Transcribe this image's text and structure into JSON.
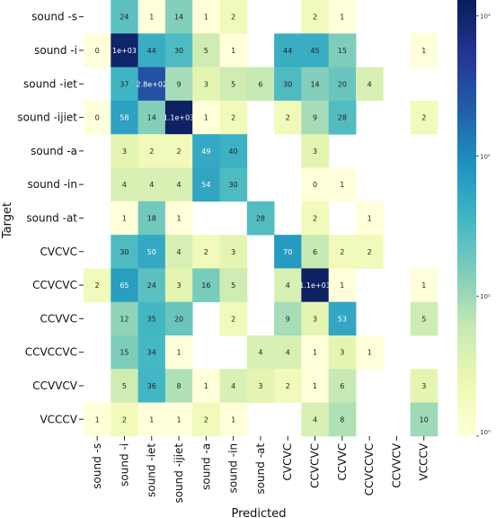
{
  "chart_data": {
    "type": "heatmap",
    "xlabel": "Predicted",
    "ylabel": "Target",
    "scale": "log",
    "colormap": "YlGnBu",
    "rows": [
      "sound -s",
      "sound -i",
      "sound -iet",
      "sound -ijiet",
      "sound -a",
      "sound -in",
      "sound -at",
      "CVCVC",
      "CCVCVC",
      "CCVVC",
      "CCVCCVC",
      "CCVVCV",
      "VCCCV"
    ],
    "columns": [
      "sound -s",
      "sound -i",
      "sound -iet",
      "sound -ijiet",
      "sound -a",
      "sound -in",
      "sound -at",
      "CVCVC",
      "CCVCVC",
      "CCVVC",
      "CCVCCVC",
      "CCVVCV",
      "VCCCV"
    ],
    "cells": [
      [
        "",
        "24",
        "1",
        "14",
        "1",
        "2",
        "",
        "",
        "2",
        "1",
        "",
        "",
        ""
      ],
      [
        "0",
        "1e+03",
        "44",
        "30",
        "5",
        "1",
        "",
        "44",
        "45",
        "15",
        "",
        "",
        "1"
      ],
      [
        "",
        "37",
        "2.8e+02",
        "9",
        "3",
        "5",
        "6",
        "30",
        "14",
        "20",
        "4",
        "",
        ""
      ],
      [
        "0",
        "58",
        "14",
        "1.1e+03",
        "1",
        "2",
        "",
        "2",
        "9",
        "28",
        "",
        "",
        "2"
      ],
      [
        "",
        "3",
        "2",
        "2",
        "49",
        "40",
        "",
        "",
        "3",
        "",
        "",
        "",
        ""
      ],
      [
        "",
        "4",
        "4",
        "4",
        "54",
        "30",
        "",
        "",
        "0",
        "1",
        "",
        "",
        ""
      ],
      [
        "",
        "1",
        "18",
        "1",
        "",
        "",
        "28",
        "",
        "2",
        "",
        "1",
        "",
        ""
      ],
      [
        "",
        "30",
        "50",
        "4",
        "2",
        "3",
        "",
        "70",
        "6",
        "2",
        "2",
        "",
        ""
      ],
      [
        "2",
        "65",
        "24",
        "3",
        "16",
        "5",
        "",
        "4",
        "1.1e+03",
        "1",
        "",
        "",
        "1"
      ],
      [
        "",
        "12",
        "35",
        "20",
        "",
        "2",
        "",
        "9",
        "3",
        "53",
        "",
        "",
        "5"
      ],
      [
        "",
        "15",
        "34",
        "1",
        "",
        "",
        "4",
        "4",
        "1",
        "3",
        "1",
        "",
        ""
      ],
      [
        "",
        "5",
        "36",
        "8",
        "1",
        "4",
        "3",
        "2",
        "1",
        "6",
        "",
        "",
        "3"
      ],
      [
        "1",
        "2",
        "1",
        "1",
        "2",
        "1",
        "",
        "",
        "4",
        "8",
        "",
        "",
        "10"
      ]
    ],
    "values": [
      [
        null,
        24,
        1,
        14,
        1,
        2,
        null,
        null,
        2,
        1,
        null,
        null,
        null
      ],
      [
        0.5,
        1000,
        44,
        30,
        5,
        1,
        null,
        44,
        45,
        15,
        null,
        null,
        1
      ],
      [
        null,
        37,
        280,
        9,
        3,
        5,
        6,
        30,
        14,
        20,
        4,
        null,
        null
      ],
      [
        0.5,
        58,
        14,
        1100,
        1,
        2,
        null,
        2,
        9,
        28,
        null,
        null,
        2
      ],
      [
        null,
        3,
        2,
        2,
        49,
        40,
        null,
        null,
        3,
        null,
        null,
        null,
        null
      ],
      [
        null,
        4,
        4,
        4,
        54,
        30,
        null,
        null,
        0.5,
        1,
        null,
        null,
        null
      ],
      [
        null,
        1,
        18,
        1,
        null,
        null,
        28,
        null,
        2,
        null,
        1,
        null,
        null
      ],
      [
        null,
        30,
        50,
        4,
        2,
        3,
        null,
        70,
        6,
        2,
        2,
        null,
        null
      ],
      [
        2,
        65,
        24,
        3,
        16,
        5,
        null,
        4,
        1100,
        1,
        null,
        null,
        1
      ],
      [
        null,
        12,
        35,
        20,
        null,
        2,
        null,
        9,
        3,
        53,
        null,
        null,
        5
      ],
      [
        null,
        15,
        34,
        1,
        null,
        null,
        4,
        4,
        1,
        3,
        1,
        null,
        null
      ],
      [
        null,
        5,
        36,
        8,
        1,
        4,
        3,
        2,
        1,
        6,
        null,
        null,
        3
      ],
      [
        1,
        2,
        1,
        1,
        2,
        1,
        null,
        null,
        4,
        8,
        null,
        null,
        10
      ]
    ],
    "colorbar": {
      "range": [
        1,
        1300
      ],
      "ticks": [
        {
          "value": 1000,
          "label": "10³"
        },
        {
          "value": 100,
          "label": "10²"
        },
        {
          "value": 10,
          "label": "10¹"
        },
        {
          "value": 1,
          "label": "10⁰"
        }
      ]
    }
  }
}
